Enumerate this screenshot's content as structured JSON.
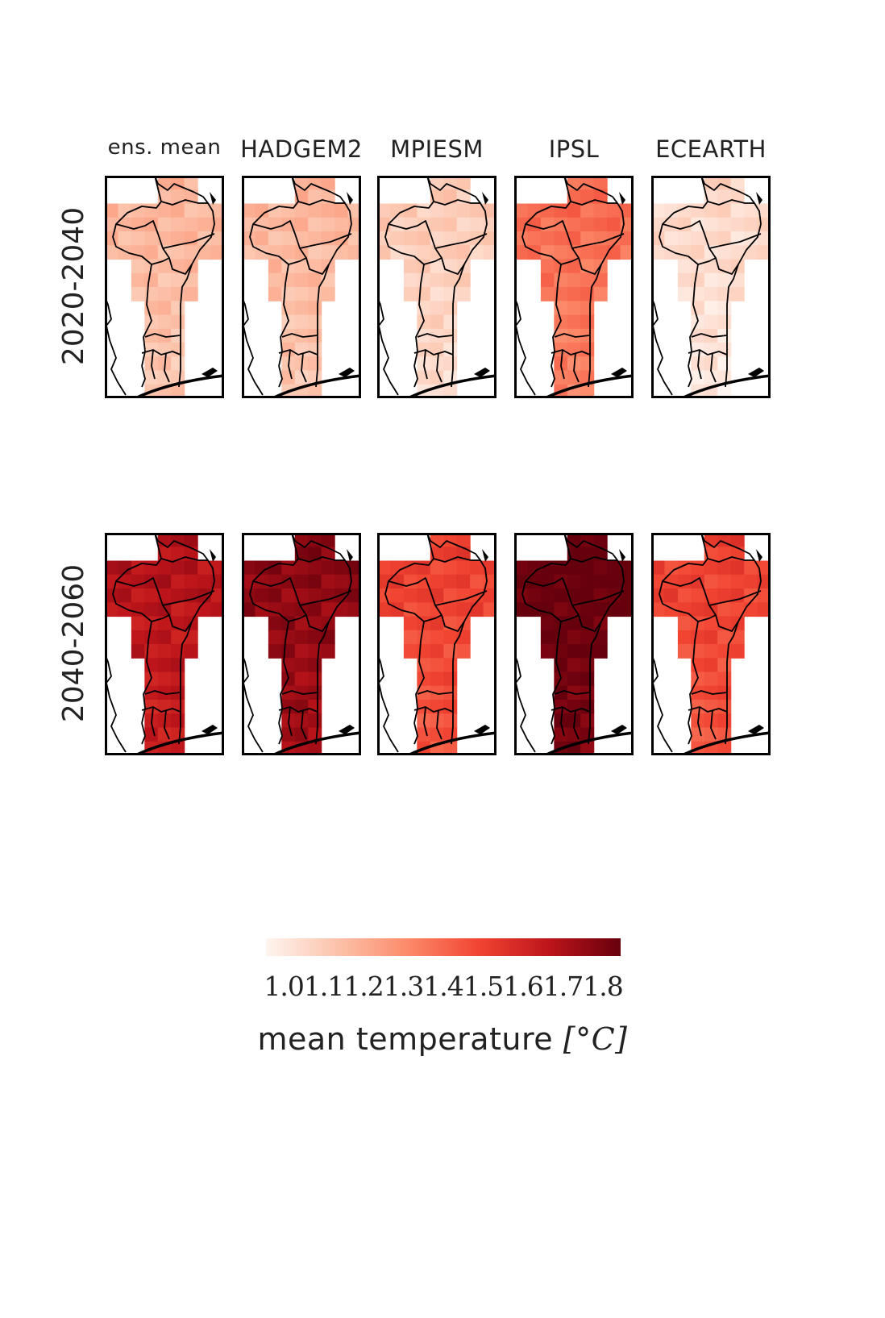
{
  "columns": [
    "ens.  mean",
    "HADGEM2",
    "MPIESM",
    "IPSL",
    "ECEARTH"
  ],
  "rows": [
    "2020-2040",
    "2040-2060"
  ],
  "colorbar": {
    "tick_labels": [
      "1.0",
      "1.1",
      "1.2",
      "1.3",
      "1.4",
      "1.5",
      "1.6",
      "1.7",
      "1.8"
    ],
    "label": "mean temperature",
    "unit": "[°C]",
    "range": [
      1.0,
      1.8
    ],
    "colormap": "Reds",
    "colors": [
      "#fff5f0",
      "#fcc3ab",
      "#fc8a6a",
      "#f14432",
      "#bc141a",
      "#67000d"
    ]
  },
  "map_data": {
    "type": "gridded-map",
    "region": "Benin",
    "panels": [
      {
        "row": "2020-2040",
        "column": "ens.  mean",
        "level": 0.18
      },
      {
        "row": "2020-2040",
        "column": "HADGEM2",
        "level": 0.18
      },
      {
        "row": "2020-2040",
        "column": "MPIESM",
        "level": 0.1
      },
      {
        "row": "2020-2040",
        "column": "IPSL",
        "level": 0.42
      },
      {
        "row": "2020-2040",
        "column": "ECEARTH",
        "level": 0.05
      },
      {
        "row": "2040-2060",
        "column": "ens.  mean",
        "level": 0.75
      },
      {
        "row": "2040-2060",
        "column": "HADGEM2",
        "level": 0.85
      },
      {
        "row": "2040-2060",
        "column": "MPIESM",
        "level": 0.55
      },
      {
        "row": "2040-2060",
        "column": "IPSL",
        "level": 0.95
      },
      {
        "row": "2040-2060",
        "column": "ECEARTH",
        "level": 0.55
      }
    ]
  }
}
